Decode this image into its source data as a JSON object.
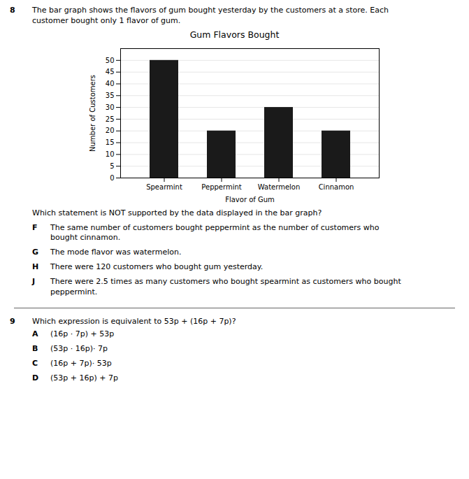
{
  "chart_data": {
    "type": "bar",
    "title": "Gum Flavors Bought",
    "categories": [
      "Spearmint",
      "Peppermint",
      "Watermelon",
      "Cinnamon"
    ],
    "values": [
      50,
      20,
      30,
      20
    ],
    "color": "#1a1a1a",
    "xlabel": "Flavor of Gum",
    "ylabel": "Number of Customers",
    "ylim": [
      0,
      55
    ],
    "yticks": [
      0,
      5,
      10,
      15,
      20,
      25,
      30,
      35,
      40,
      45,
      50
    ],
    "grid": true
  },
  "questions": [
    {
      "number": "8",
      "text": "The bar graph shows the flavors of gum bought yesterday by the customers at a store. Each\ncustomer bought only 1 flavor of gum.",
      "prompt": "Which statement is NOT supported by the data displayed in the bar graph?",
      "answers": [
        {
          "letter": "F",
          "text": "The same number of customers bought peppermint as the number of customers who\nbought cinnamon."
        },
        {
          "letter": "G",
          "text": "The mode flavor was watermelon."
        },
        {
          "letter": "H",
          "text": "There were 120 customers who bought gum yesterday."
        },
        {
          "letter": "J",
          "text": "There were 2.5 times as many customers who bought spearmint as customers who bought\npeppermint."
        }
      ]
    },
    {
      "number": "9",
      "text": "Which expression is equivalent to 53p + (16p + 7p)?",
      "answers": [
        {
          "letter": "A",
          "text": "(16p · 7p) + 53p"
        },
        {
          "letter": "B",
          "text": "(53p · 16p)· 7p"
        },
        {
          "letter": "C",
          "text": "(16p + 7p)· 53p"
        },
        {
          "letter": "D",
          "text": "(53p + 16p) + 7p"
        }
      ]
    }
  ]
}
